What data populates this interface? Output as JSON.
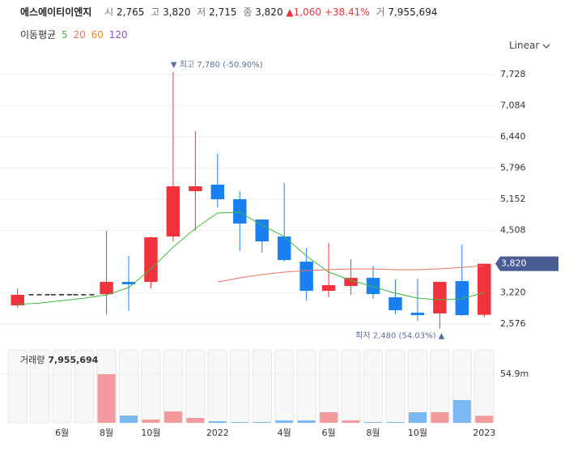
{
  "header": {
    "name": "에스에이티이엔지",
    "fields": [
      {
        "label": "시",
        "value": "2,765"
      },
      {
        "label": "고",
        "value": "3,820"
      },
      {
        "label": "저",
        "value": "2,715"
      },
      {
        "label": "종",
        "value": "3,820"
      }
    ],
    "change": "▲1,060",
    "change_pct": "+38.41%",
    "volume_label": "거",
    "volume": "7,955,694"
  },
  "scale_menu": "Linear",
  "chart_data": [
    {
      "type": "candlestick",
      "legend_title": "이동평균",
      "categories": [
        null,
        null,
        "6월",
        null,
        "8월",
        null,
        "10월",
        null,
        null,
        "2022",
        null,
        null,
        "4월",
        null,
        "6월",
        null,
        "8월",
        null,
        "10월",
        null,
        null,
        "2023"
      ],
      "open": [
        2960,
        3180,
        3180,
        3180,
        3190,
        3445,
        3445,
        4382,
        5319,
        5453,
        5152,
        4733,
        4382,
        3863,
        3261,
        3361,
        3529,
        3127,
        2809,
        2793,
        3462,
        2765
      ],
      "high": [
        3310,
        3180,
        3180,
        3180,
        4499,
        3980,
        4382,
        7780,
        6557,
        6088,
        5319,
        4733,
        5486,
        4148,
        4248,
        3914,
        3780,
        3495,
        3512,
        3445,
        4215,
        3820
      ],
      "low": [
        2910,
        3180,
        3180,
        3180,
        2776,
        2843,
        3311,
        4281,
        4499,
        4984,
        4081,
        4047,
        3863,
        3060,
        3127,
        3177,
        3094,
        2776,
        2642,
        2480,
        2743,
        2715
      ],
      "close": [
        3180,
        3180,
        3180,
        3180,
        3445,
        3395,
        4365,
        5419,
        5419,
        5152,
        4650,
        4281,
        3897,
        3261,
        3378,
        3529,
        3194,
        2860,
        2759,
        3445,
        2759,
        3820
      ],
      "up_color": "#f0323c",
      "down_color": "#1a7ff0",
      "flat_color": "#222222",
      "series": [
        {
          "name": "5",
          "color": "#3fb83f",
          "values": [
            2977,
            3010,
            3060,
            3110,
            3177,
            3328,
            3713,
            4164,
            4549,
            4867,
            4884,
            4616,
            4382,
            3980,
            3646,
            3479,
            3345,
            3211,
            3110,
            3077,
            3094,
            3228
          ]
        },
        {
          "name": "20",
          "color": "#f07060",
          "values": [
            null,
            null,
            null,
            null,
            null,
            null,
            null,
            null,
            null,
            3445,
            3529,
            3596,
            3646,
            3680,
            3696,
            3713,
            3713,
            3696,
            3696,
            3713,
            3746,
            3780
          ]
        },
        {
          "name": "60",
          "color": "#f08a24",
          "values": [
            null,
            null,
            null,
            null,
            null,
            null,
            null,
            null,
            null,
            null,
            null,
            null,
            null,
            null,
            null,
            null,
            null,
            null,
            null,
            null,
            null,
            null
          ]
        },
        {
          "name": "120",
          "color": "#8a4fd0",
          "values": [
            null,
            null,
            null,
            null,
            null,
            null,
            null,
            null,
            null,
            null,
            null,
            null,
            null,
            null,
            null,
            null,
            null,
            null,
            null,
            null,
            null,
            null
          ]
        }
      ],
      "ylim": [
        2158,
        8263
      ],
      "yticks": [
        {
          "value": 7728,
          "label": "7,728"
        },
        {
          "value": 7084,
          "label": "7,084"
        },
        {
          "value": 6440,
          "label": "6,440"
        },
        {
          "value": 5796,
          "label": "5,796"
        },
        {
          "value": 5152,
          "label": "5,152"
        },
        {
          "value": 4508,
          "label": "4,508"
        },
        {
          "value": 3220,
          "label": "3,220"
        },
        {
          "value": 2576,
          "label": "2,576"
        }
      ],
      "grid": true,
      "last_price_label": "3,820",
      "high_annotation": "▼ 최고 7,780 (-50.90%)",
      "low_annotation": "최저 2,480 (54.03%) ▲"
    },
    {
      "type": "bar",
      "title": "거래량",
      "title_value": "7,955,694",
      "values": [
        0,
        0,
        0,
        0,
        54900000,
        8200000,
        3700000,
        12800000,
        5500000,
        1800000,
        900000,
        900000,
        2700000,
        2700000,
        11900000,
        2700000,
        900000,
        900000,
        11900000,
        11900000,
        25600000,
        7955694
      ],
      "up_color": "#f29a9c",
      "down_color": "#7ab8f2",
      "ylim": [
        0,
        82350000
      ],
      "yticks": [
        {
          "value": 54900000,
          "label": "54.9m"
        }
      ]
    }
  ]
}
